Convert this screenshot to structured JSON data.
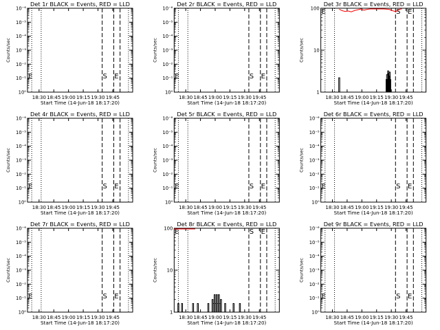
{
  "layout": {
    "rows": 3,
    "cols": 3
  },
  "colors": {
    "events": "#000000",
    "lld": "#ff0000",
    "axes": "#000000",
    "background": "#ffffff"
  },
  "chart_data": [
    {
      "type": "line",
      "title": "Det 1r BLACK = Events, RED = LLD",
      "xlabel": "Start Time (14-Jun-18 18:17:20)",
      "ylabel": "Counts/sec",
      "y_scale": "log",
      "y_tick_labels": [
        "10⁰",
        "10⁻¹",
        "10⁻²",
        "10⁻³",
        "10⁻⁴",
        "10⁻⁵",
        "10⁻⁶"
      ],
      "x_tick_labels": [
        "18:30",
        "18:45",
        "19:00",
        "19:15",
        "19:30",
        "19:45"
      ],
      "marker_labels": [
        "E",
        "S",
        "E"
      ],
      "events": [],
      "lld": []
    },
    {
      "type": "line",
      "title": "Det 2r BLACK = Events, RED = LLD",
      "xlabel": "Start Time (14-Jun-18 18:17:20)",
      "ylabel": "Counts/sec",
      "y_scale": "log",
      "y_tick_labels": [
        "10⁰",
        "10⁻¹",
        "10⁻²",
        "10⁻³",
        "10⁻⁴",
        "10⁻⁵",
        "10⁻⁶"
      ],
      "x_tick_labels": [
        "18:30",
        "18:45",
        "19:00",
        "19:15",
        "19:30",
        "19:45"
      ],
      "marker_labels": [
        "E",
        "S",
        "E"
      ],
      "events": [],
      "lld": []
    },
    {
      "type": "line",
      "title": "Det 3r BLACK = Events, RED = LLD",
      "xlabel": "Start Time (14-Jun-18 18:17:20)",
      "ylabel": "Counts/sec",
      "y_scale": "log",
      "y_tick_labels": [
        "1",
        "10",
        "100"
      ],
      "x_tick_labels": [
        "18:30",
        "18:45",
        "19:00",
        "19:15",
        "19:30",
        "19:45"
      ],
      "marker_labels": [
        "E",
        "S",
        "E"
      ],
      "events": [
        [
          0.17,
          2.2
        ],
        [
          0.62,
          2.0
        ],
        [
          0.625,
          2.6
        ],
        [
          0.63,
          1.5
        ],
        [
          0.635,
          3.2
        ],
        [
          0.64,
          2.8
        ],
        [
          0.645,
          2.4
        ],
        [
          0.65,
          3.0
        ],
        [
          0.655,
          2.0
        ]
      ],
      "lld": [
        [
          0.175,
          95
        ],
        [
          0.2,
          88
        ],
        [
          0.23,
          84
        ],
        [
          0.26,
          86
        ],
        [
          0.29,
          82
        ],
        [
          0.32,
          88
        ],
        [
          0.35,
          92
        ],
        [
          0.38,
          96
        ],
        [
          0.41,
          90
        ],
        [
          0.44,
          94
        ],
        [
          0.47,
          98
        ],
        [
          0.5,
          99
        ],
        [
          0.55,
          97
        ],
        [
          0.6,
          99
        ],
        [
          0.65,
          94
        ],
        [
          0.68,
          88
        ],
        [
          0.71,
          83
        ],
        [
          0.73,
          87
        ],
        [
          0.75,
          95
        ],
        [
          0.77,
          99
        ]
      ]
    },
    {
      "type": "line",
      "title": "Det 4r BLACK = Events, RED = LLD",
      "xlabel": "Start Time (14-Jun-18 18:17:20)",
      "ylabel": "Counts/sec",
      "y_scale": "log",
      "y_tick_labels": [
        "10⁰",
        "10⁻¹",
        "10⁻²",
        "10⁻³",
        "10⁻⁴",
        "10⁻⁵",
        "10⁻⁶"
      ],
      "x_tick_labels": [
        "18:30",
        "18:45",
        "19:00",
        "19:15",
        "19:30",
        "19:45"
      ],
      "marker_labels": [
        "E",
        "S",
        "E"
      ],
      "events": [],
      "lld": []
    },
    {
      "type": "line",
      "title": "Det 5r BLACK = Events, RED = LLD",
      "xlabel": "Start Time (14-Jun-18 18:17:20)",
      "ylabel": "Counts/sec",
      "y_scale": "log",
      "y_tick_labels": [
        "10⁰",
        "10⁻¹",
        "10⁻²",
        "10⁻³",
        "10⁻⁴",
        "10⁻⁵",
        "10⁻⁶"
      ],
      "x_tick_labels": [
        "18:30",
        "18:45",
        "19:00",
        "19:15",
        "19:30",
        "19:45"
      ],
      "marker_labels": [
        "E",
        "S",
        "E"
      ],
      "events": [],
      "lld": []
    },
    {
      "type": "line",
      "title": "Det 6r BLACK = Events, RED = LLD",
      "xlabel": "Start Time (14-Jun-18 18:17:20)",
      "ylabel": "Counts/sec",
      "y_scale": "log",
      "y_tick_labels": [
        "10⁰",
        "10⁻¹",
        "10⁻²",
        "10⁻³",
        "10⁻⁴",
        "10⁻⁵",
        "10⁻⁶"
      ],
      "x_tick_labels": [
        "18:30",
        "18:45",
        "19:00",
        "19:15",
        "19:30",
        "19:45"
      ],
      "marker_labels": [
        "E",
        "S",
        "E"
      ],
      "events": [],
      "lld": []
    },
    {
      "type": "line",
      "title": "Det 7r BLACK = Events, RED = LLD",
      "xlabel": "Start Time (14-Jun-18 18:17:20)",
      "ylabel": "Counts/sec",
      "y_scale": "log",
      "y_tick_labels": [
        "10⁰",
        "10⁻¹",
        "10⁻²",
        "10⁻³",
        "10⁻⁴",
        "10⁻⁵",
        "10⁻⁶"
      ],
      "x_tick_labels": [
        "18:30",
        "18:45",
        "19:00",
        "19:15",
        "19:30",
        "19:45"
      ],
      "marker_labels": [
        "E",
        "S",
        "E"
      ],
      "events": [],
      "lld": []
    },
    {
      "type": "line",
      "title": "Det 8r BLACK = Events, RED = LLD",
      "xlabel": "Start Time (14-Jun-18 18:17:20)",
      "ylabel": "Counts/sec",
      "y_scale": "log",
      "y_tick_labels": [
        "1",
        "10",
        "100"
      ],
      "x_tick_labels": [
        "18:30",
        "18:45",
        "19:00",
        "19:15",
        "19:30",
        "19:45"
      ],
      "marker_labels": [
        "E",
        "S",
        "E"
      ],
      "events": [
        [
          0.03,
          1.0
        ],
        [
          0.035,
          1.6
        ],
        [
          0.04,
          1.0
        ],
        [
          0.07,
          1.6
        ],
        [
          0.075,
          1.0
        ],
        [
          0.17,
          1.0
        ],
        [
          0.175,
          1.6
        ],
        [
          0.18,
          1.0
        ],
        [
          0.22,
          1.6
        ],
        [
          0.225,
          1.0
        ],
        [
          0.32,
          1.6
        ],
        [
          0.33,
          1.0
        ],
        [
          0.36,
          2.0
        ],
        [
          0.37,
          1.6
        ],
        [
          0.38,
          2.6
        ],
        [
          0.39,
          1.6
        ],
        [
          0.4,
          2.6
        ],
        [
          0.41,
          1.6
        ],
        [
          0.42,
          2.6
        ],
        [
          0.43,
          1.6
        ],
        [
          0.44,
          2.0
        ],
        [
          0.45,
          1.0
        ],
        [
          0.48,
          1.6
        ],
        [
          0.49,
          1.0
        ],
        [
          0.56,
          1.6
        ],
        [
          0.57,
          1.0
        ],
        [
          0.62,
          1.6
        ],
        [
          0.63,
          1.0
        ]
      ],
      "lld": [
        [
          0.0,
          98
        ],
        [
          0.1,
          100
        ],
        [
          0.2,
          100
        ]
      ]
    },
    {
      "type": "line",
      "title": "Det 9r BLACK = Events, RED = LLD",
      "xlabel": "Start Time (14-Jun-18 18:17:20)",
      "ylabel": "Counts/sec",
      "y_scale": "log",
      "y_tick_labels": [
        "10⁰",
        "10⁻¹",
        "10⁻²",
        "10⁻³",
        "10⁻⁴",
        "10⁻⁵",
        "10⁻⁶"
      ],
      "x_tick_labels": [
        "18:30",
        "18:45",
        "19:00",
        "19:15",
        "19:30",
        "19:45"
      ],
      "marker_labels": [
        "E",
        "S",
        "E"
      ],
      "events": [],
      "lld": []
    }
  ]
}
